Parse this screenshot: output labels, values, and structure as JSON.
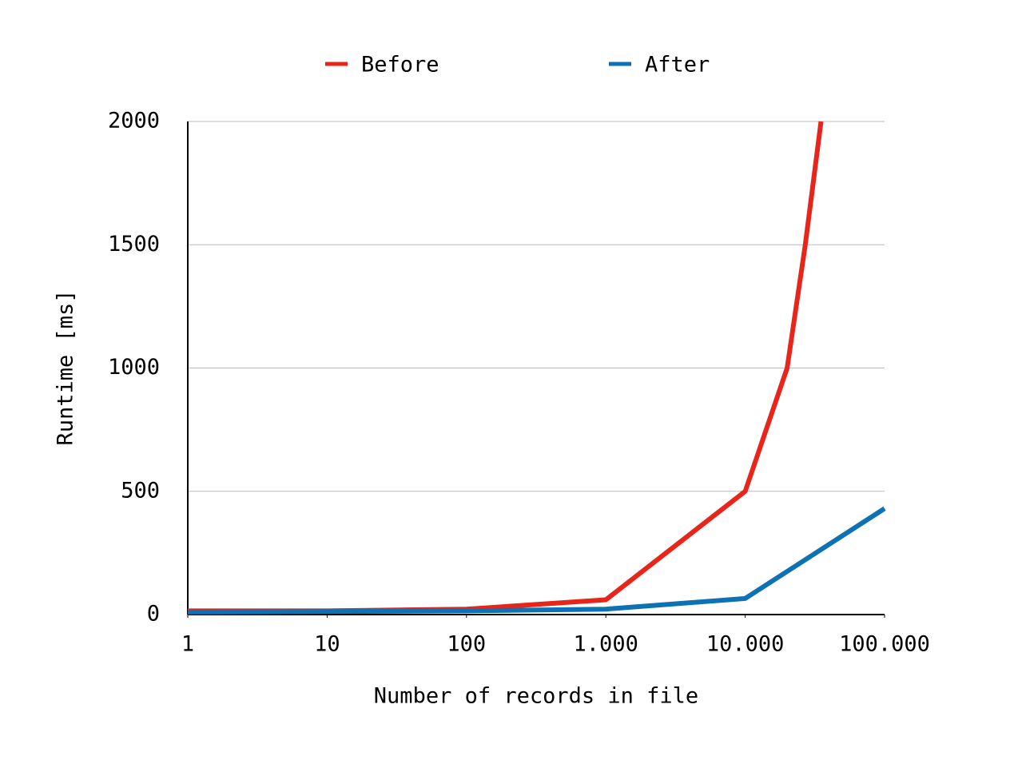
{
  "chart_data": {
    "type": "line",
    "x_label": "Number of records in file",
    "y_label": "Runtime [ms]",
    "x_scale": "log",
    "xlim": [
      1,
      100000
    ],
    "xticks": [
      1,
      10,
      100,
      {
        "value": 1000,
        "label": "1.000"
      },
      {
        "value": 10000,
        "label": "10.000"
      },
      {
        "value": 100000,
        "label": "100.000"
      }
    ],
    "ylim": [
      0,
      2000
    ],
    "yticks": [
      0,
      500,
      1000,
      1500,
      2000
    ],
    "grid": true,
    "legend": "top",
    "series": [
      {
        "name": "Before",
        "color": "#e8251a",
        "x": [
          1,
          10,
          100,
          1000,
          10000,
          20000,
          27000,
          35000
        ],
        "values": [
          15,
          15,
          22,
          60,
          500,
          1000,
          1500,
          2000
        ]
      },
      {
        "name": "After",
        "color": "#0d72b3",
        "x": [
          1,
          10,
          100,
          1000,
          10000,
          100000
        ],
        "values": [
          10,
          12,
          15,
          22,
          65,
          430
        ]
      }
    ]
  }
}
